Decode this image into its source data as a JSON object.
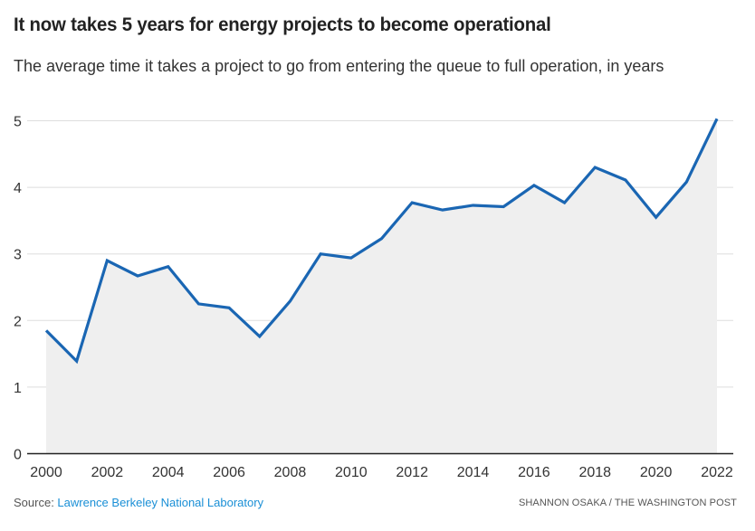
{
  "header": {
    "title": "It now takes 5 years for energy projects to become operational",
    "subtitle": "The average time it takes a project to go from entering the queue to full operation, in years"
  },
  "footer": {
    "source_prefix": "Source: ",
    "source_link": "Lawrence Berkeley National Laboratory",
    "credit": "SHANNON OSAKA / THE WASHINGTON POST"
  },
  "colors": {
    "line": "#1a66b3",
    "area": "#efefef",
    "grid": "#dddddd",
    "baseline": "#222222",
    "link": "#1a8fd6"
  },
  "chart_data": {
    "type": "area",
    "title": "It now takes 5 years for energy projects to become operational",
    "subtitle": "The average time it takes a project to go from entering the queue to full operation, in years",
    "xlabel": "",
    "ylabel": "",
    "x": [
      2000,
      2001,
      2002,
      2003,
      2004,
      2005,
      2006,
      2007,
      2008,
      2009,
      2010,
      2011,
      2012,
      2013,
      2014,
      2015,
      2016,
      2017,
      2018,
      2019,
      2020,
      2021,
      2022
    ],
    "series": [
      {
        "name": "Average years from queue entry to operation",
        "values": [
          1.85,
          1.39,
          2.9,
          2.67,
          2.81,
          2.25,
          2.19,
          1.76,
          2.29,
          3.0,
          2.94,
          3.23,
          3.77,
          3.66,
          3.73,
          3.71,
          4.03,
          3.77,
          4.3,
          4.11,
          3.55,
          4.08,
          5.03
        ]
      }
    ],
    "xlim": [
      2000,
      2022
    ],
    "ylim": [
      0,
      5
    ],
    "yticks": [
      0,
      1,
      2,
      3,
      4,
      5
    ],
    "xticks": [
      2000,
      2002,
      2004,
      2006,
      2008,
      2010,
      2012,
      2014,
      2016,
      2018,
      2020,
      2022
    ],
    "grid": true,
    "legend": "none",
    "source": "Lawrence Berkeley National Laboratory"
  }
}
